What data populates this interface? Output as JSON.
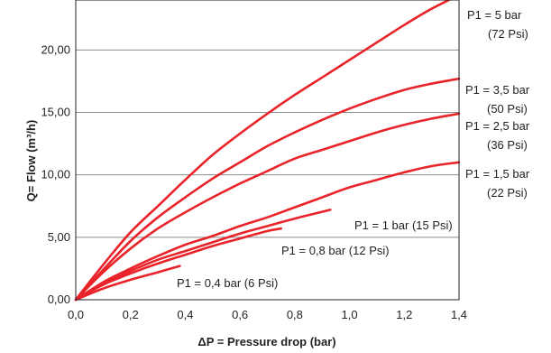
{
  "chart_data": {
    "type": "line",
    "title": "",
    "xlabel": "ΔP = Pressure drop (bar)",
    "ylabel": "Q= Flow  (m³/h)",
    "xlim": [
      0,
      1.4
    ],
    "ylim": [
      0,
      24
    ],
    "xticks": [
      0,
      0.2,
      0.4,
      0.6,
      0.8,
      1.0,
      1.2,
      1.4
    ],
    "xtick_labels": [
      "0,0",
      "0,2",
      "0,4",
      "0,6",
      "0,8",
      "1,0",
      "1,2",
      "1,4"
    ],
    "yticks": [
      0,
      5,
      10,
      15,
      20
    ],
    "ytick_labels": [
      "0,00",
      "5,00",
      "10,00",
      "15,00",
      "20,00"
    ],
    "grid": "horizontal",
    "line_color": "#e8242a",
    "series": [
      {
        "name": "P1 = 5 bar",
        "label_lines": [
          "P1 = 5 bar",
          "(72 Psi)"
        ],
        "x": [
          0,
          0.1,
          0.2,
          0.3,
          0.4,
          0.5,
          0.6,
          0.7,
          0.8,
          0.9,
          1.0,
          1.1,
          1.2,
          1.3,
          1.4
        ],
        "y": [
          0,
          2.8,
          5.4,
          7.5,
          9.6,
          11.6,
          13.3,
          14.9,
          16.4,
          17.8,
          19.2,
          20.6,
          22.0,
          23.3,
          24.4
        ]
      },
      {
        "name": "P1 = 3,5 bar",
        "label_lines": [
          "P1 = 3,5 bar",
          "(50 Psi)"
        ],
        "x": [
          0,
          0.1,
          0.2,
          0.3,
          0.4,
          0.5,
          0.6,
          0.7,
          0.8,
          0.9,
          1.0,
          1.1,
          1.2,
          1.3,
          1.4
        ],
        "y": [
          0,
          2.4,
          4.7,
          6.6,
          8.2,
          9.7,
          11.0,
          12.3,
          13.4,
          14.4,
          15.3,
          16.1,
          16.8,
          17.3,
          17.7
        ]
      },
      {
        "name": "P1 = 2,5 bar",
        "label_lines": [
          "P1 = 2,5 bar",
          "(36 Psi)"
        ],
        "x": [
          0,
          0.1,
          0.2,
          0.3,
          0.4,
          0.5,
          0.6,
          0.7,
          0.8,
          0.9,
          1.0,
          1.1,
          1.2,
          1.3,
          1.4
        ],
        "y": [
          0,
          2.2,
          4.1,
          5.7,
          7.0,
          8.2,
          9.3,
          10.3,
          11.3,
          12.0,
          12.7,
          13.4,
          14.0,
          14.5,
          14.9
        ]
      },
      {
        "name": "P1 = 1,5 bar",
        "label_lines": [
          "P1 = 1,5 bar",
          "(22 Psi)"
        ],
        "x": [
          0,
          0.1,
          0.2,
          0.3,
          0.4,
          0.5,
          0.6,
          0.7,
          0.8,
          0.9,
          1.0,
          1.1,
          1.2,
          1.3,
          1.4
        ],
        "y": [
          0,
          1.4,
          2.5,
          3.5,
          4.4,
          5.1,
          5.9,
          6.6,
          7.4,
          8.2,
          9.0,
          9.6,
          10.2,
          10.7,
          11.0
        ]
      },
      {
        "name": "P1 = 1 bar (15 Psi)",
        "label_lines": [
          "P1 = 1 bar (15 Psi)"
        ],
        "x": [
          0,
          0.1,
          0.2,
          0.3,
          0.4,
          0.5,
          0.6,
          0.7,
          0.8,
          0.93
        ],
        "y": [
          0,
          1.3,
          2.3,
          3.2,
          3.9,
          4.6,
          5.3,
          5.9,
          6.5,
          7.2
        ]
      },
      {
        "name": "P1 = 0,8 bar (12 Psi)",
        "label_lines": [
          "P1 = 0,8 bar (12 Psi)"
        ],
        "x": [
          0,
          0.1,
          0.2,
          0.3,
          0.4,
          0.5,
          0.6,
          0.7,
          0.75
        ],
        "y": [
          0,
          1.2,
          2.1,
          2.9,
          3.6,
          4.3,
          4.9,
          5.5,
          5.7
        ]
      },
      {
        "name": "P1 = 0,4 bar (6 Psi)",
        "label_lines": [
          "P1 = 0,4 bar (6 Psi)"
        ],
        "x": [
          0,
          0.1,
          0.2,
          0.3,
          0.38
        ],
        "y": [
          0,
          0.9,
          1.6,
          2.2,
          2.7
        ]
      }
    ]
  }
}
